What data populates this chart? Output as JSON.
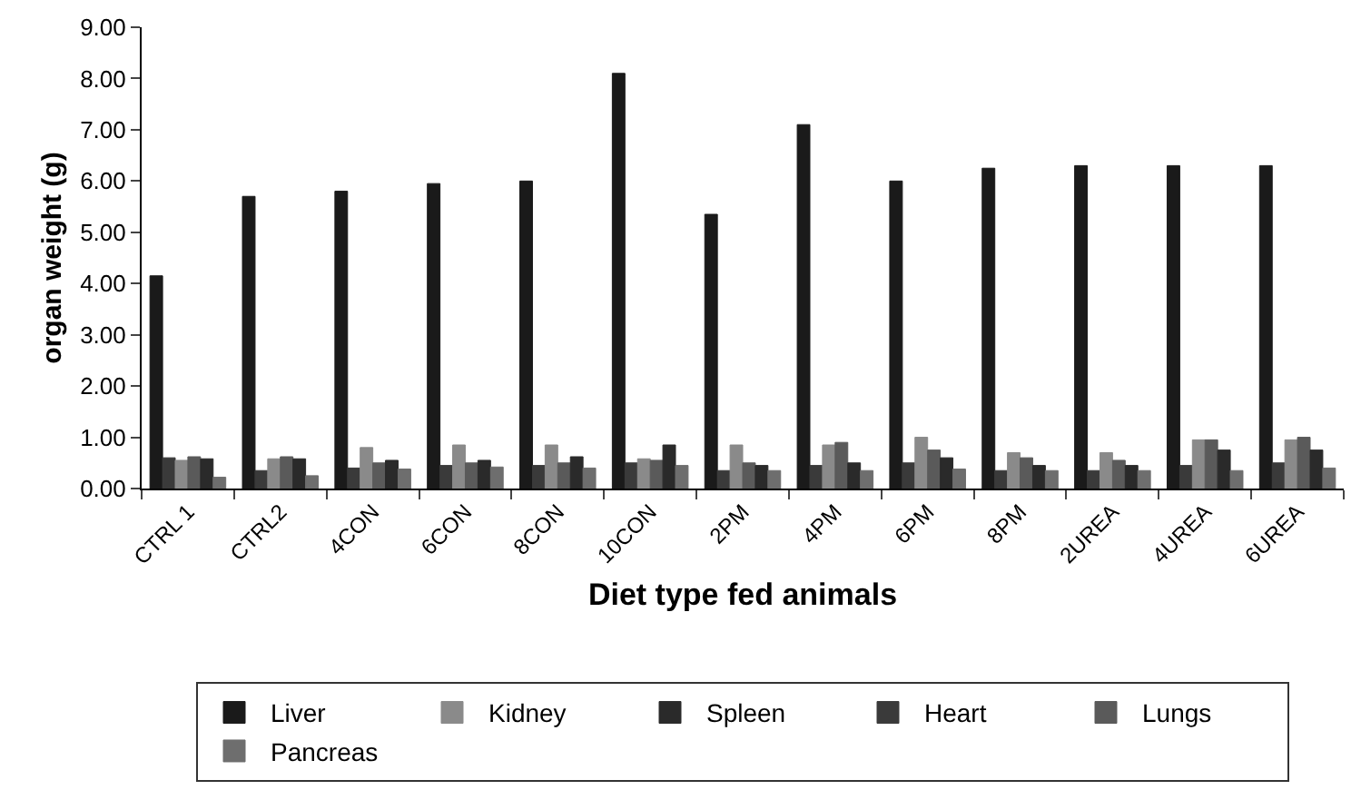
{
  "chart_data": {
    "type": "bar",
    "xlabel": "Diet type fed animals",
    "ylabel": "organ weight (g)",
    "categories": [
      "CTRL 1",
      "CTRL2",
      "4CON",
      "6CON",
      "8CON",
      "10CON",
      "2PM",
      "4PM",
      "6PM",
      "8PM",
      "2UREA",
      "4UREA",
      "6UREA"
    ],
    "series": [
      {
        "name": "Liver",
        "color": "#1a1a1a",
        "values": [
          4.15,
          5.7,
          5.8,
          5.95,
          6.0,
          8.1,
          5.35,
          7.1,
          6.0,
          6.25,
          6.3,
          6.3,
          6.3
        ]
      },
      {
        "name": "Heart",
        "color": "#3a3a3a",
        "values": [
          0.6,
          0.35,
          0.4,
          0.45,
          0.45,
          0.5,
          0.35,
          0.45,
          0.5,
          0.35,
          0.35,
          0.45,
          0.5
        ]
      },
      {
        "name": "Kidney",
        "color": "#8a8a8a",
        "values": [
          0.55,
          0.58,
          0.8,
          0.85,
          0.85,
          0.58,
          0.85,
          0.85,
          1.0,
          0.7,
          0.7,
          0.95,
          0.95
        ]
      },
      {
        "name": "Lungs",
        "color": "#5a5a5a",
        "values": [
          0.62,
          0.62,
          0.5,
          0.5,
          0.5,
          0.55,
          0.5,
          0.9,
          0.75,
          0.6,
          0.55,
          0.95,
          1.0
        ]
      },
      {
        "name": "Spleen",
        "color": "#2a2a2a",
        "values": [
          0.58,
          0.58,
          0.55,
          0.55,
          0.62,
          0.85,
          0.45,
          0.5,
          0.6,
          0.45,
          0.45,
          0.75,
          0.75
        ]
      },
      {
        "name": "Pancreas",
        "color": "#6e6e6e",
        "values": [
          0.22,
          0.25,
          0.38,
          0.42,
          0.4,
          0.45,
          0.35,
          0.35,
          0.38,
          0.35,
          0.35,
          0.35,
          0.4
        ]
      }
    ],
    "ylim": [
      0,
      9
    ],
    "yticks": [
      {
        "value": 0,
        "label": "0.00"
      },
      {
        "value": 1,
        "label": "1.00"
      },
      {
        "value": 2,
        "label": "2.00"
      },
      {
        "value": 3,
        "label": "3.00"
      },
      {
        "value": 4,
        "label": "4.00"
      },
      {
        "value": 5,
        "label": "5.00"
      },
      {
        "value": 6,
        "label": "6.00"
      },
      {
        "value": 7,
        "label": "7.00"
      },
      {
        "value": 8,
        "label": "8.00"
      },
      {
        "value": 9,
        "label": "9.00"
      }
    ],
    "grid": false,
    "legend": "bottom"
  }
}
